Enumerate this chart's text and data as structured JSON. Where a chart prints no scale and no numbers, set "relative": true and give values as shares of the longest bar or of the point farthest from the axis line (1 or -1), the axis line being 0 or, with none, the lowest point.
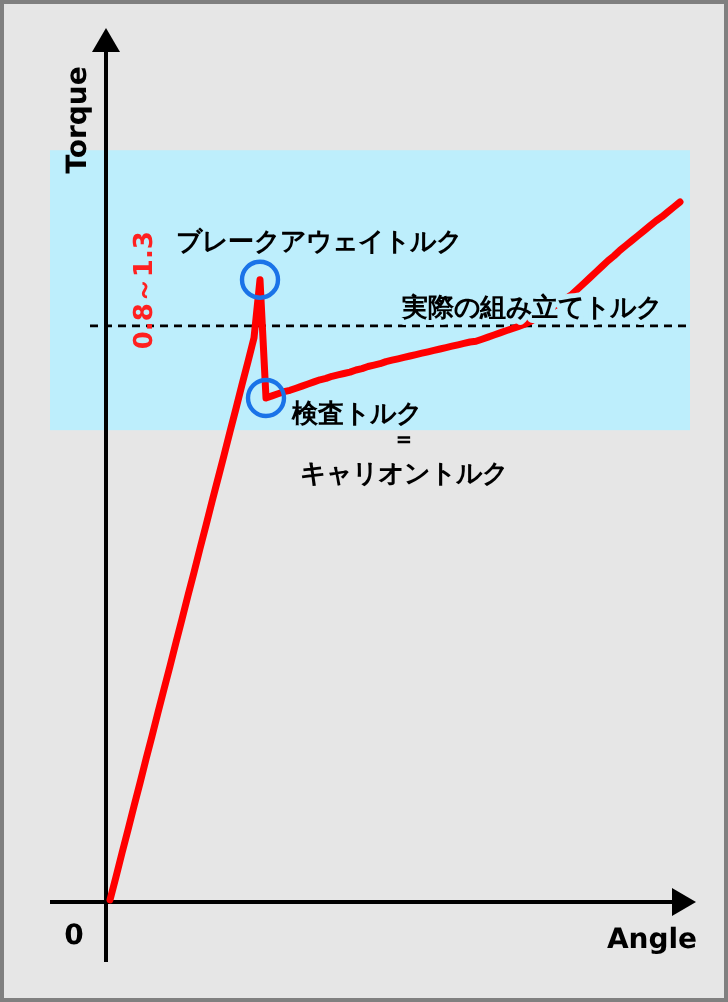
{
  "chart_data": {
    "type": "line",
    "relative": true,
    "xlabel": "Angle",
    "ylabel": "Torque",
    "categories": [
      null,
      null,
      null,
      null,
      null,
      null,
      null,
      null,
      null,
      null,
      null,
      null,
      null,
      null,
      null,
      null,
      null,
      null,
      null,
      null,
      null,
      null,
      null,
      null,
      null,
      null,
      null,
      null,
      null,
      null,
      null,
      null,
      null,
      null,
      null,
      null,
      null,
      null,
      null,
      null,
      null,
      null,
      null,
      null,
      null,
      null,
      null,
      null,
      null,
      null,
      null,
      null,
      null,
      null,
      null,
      null,
      null,
      null,
      null,
      null,
      null,
      null,
      null,
      null,
      null,
      null,
      null,
      null,
      null,
      null,
      null,
      null,
      null,
      null,
      null,
      null,
      null,
      null,
      null,
      null,
      null,
      null,
      null,
      null,
      null,
      null,
      null,
      null,
      null,
      null,
      null,
      null,
      null,
      null,
      null,
      null
    ],
    "series": [
      {
        "color": "#ff0000",
        "line_style": "solid",
        "values": [
          0.003,
          0.036,
          0.07,
          0.103,
          0.137,
          0.17,
          0.204,
          0.237,
          0.271,
          0.304,
          0.337,
          0.371,
          0.404,
          0.438,
          0.471,
          0.505,
          0.538,
          0.572,
          0.605,
          0.638,
          0.672,
          0.705,
          0.739,
          0.772,
          0.806,
          0.889,
          0.72,
          0.723,
          0.726,
          0.729,
          0.731,
          0.734,
          0.737,
          0.74,
          0.743,
          0.746,
          0.748,
          0.751,
          0.753,
          0.755,
          0.757,
          0.76,
          0.762,
          0.765,
          0.767,
          0.769,
          0.772,
          0.774,
          0.776,
          0.778,
          0.78,
          0.782,
          0.784,
          0.786,
          0.788,
          0.79,
          0.792,
          0.794,
          0.796,
          0.798,
          0.8,
          0.801,
          0.804,
          0.807,
          0.81,
          0.813,
          0.816,
          0.819,
          0.822,
          0.825,
          0.829,
          0.834,
          0.84,
          0.845,
          0.851,
          0.856,
          0.862,
          0.868,
          0.876,
          0.884,
          0.892,
          0.9,
          0.908,
          0.916,
          0.923,
          0.931,
          0.938,
          0.945,
          0.952,
          0.959,
          0.966,
          0.973,
          0.979,
          0.986,
          0.993,
          1.0
        ]
      }
    ],
    "bands": [
      {
        "axis": "y",
        "from": 0.674,
        "to": 1.074,
        "label": "0.8～1.3",
        "color": "#bdeefc"
      }
    ],
    "ref_lines": [
      {
        "axis": "y",
        "value": 0.823,
        "label": "実際の組み立てトルク",
        "line_style": "dashed",
        "color": "#000000"
      }
    ],
    "annotations": [
      "ブレークアウェイトルク",
      "検査トルク",
      "=",
      "キャリオントルク",
      "0"
    ]
  }
}
